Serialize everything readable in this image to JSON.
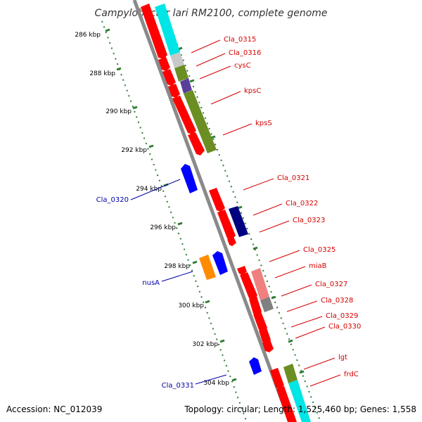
{
  "title": "Campylobacter lari RM2100, complete genome",
  "footer": {
    "accession": "Accession: NC_012039",
    "stats": "Topology: circular; Length: 1,525,460 bp; Genes: 1,558"
  },
  "colors": {
    "backbone": "#8a8a8a",
    "tick": "#2e7d32",
    "forward_label": "#d40000",
    "reverse_label": "#0000aa"
  },
  "tick_labels": [
    "286 kbp",
    "288 kbp",
    "290 kbp",
    "292 kbp",
    "294 kbp",
    "296 kbp",
    "298 kbp",
    "300 kbp",
    "302 kbp",
    "304 kbp"
  ],
  "gene_labels": [
    {
      "text": "Cla_0315",
      "strand": "forward"
    },
    {
      "text": "Cla_0316",
      "strand": "forward"
    },
    {
      "text": "cysC",
      "strand": "forward"
    },
    {
      "text": "kpsC",
      "strand": "forward"
    },
    {
      "text": "kpsS",
      "strand": "forward"
    },
    {
      "text": "Cla_0321",
      "strand": "forward"
    },
    {
      "text": "Cla_0322",
      "strand": "forward"
    },
    {
      "text": "Cla_0323",
      "strand": "forward"
    },
    {
      "text": "Cla_0325",
      "strand": "forward"
    },
    {
      "text": "miaB",
      "strand": "forward"
    },
    {
      "text": "Cla_0327",
      "strand": "forward"
    },
    {
      "text": "Cla_0328",
      "strand": "forward"
    },
    {
      "text": "Cla_0329",
      "strand": "forward"
    },
    {
      "text": "Cla_0330",
      "strand": "forward"
    },
    {
      "text": "lgt",
      "strand": "forward"
    },
    {
      "text": "frdC",
      "strand": "forward"
    },
    {
      "text": "Cla_0320",
      "strand": "reverse"
    },
    {
      "text": "nusA",
      "strand": "reverse"
    },
    {
      "text": "Cla_0331",
      "strand": "reverse"
    }
  ],
  "features": [
    {
      "kind": "forward-cds",
      "color": "#ff0000"
    },
    {
      "kind": "reverse-cds",
      "color": "#0000ff"
    },
    {
      "kind": "cog-cyan",
      "color": "#00e5e5"
    },
    {
      "kind": "cog-olive",
      "color": "#6b8e23"
    },
    {
      "kind": "cog-navy",
      "color": "#000080"
    },
    {
      "kind": "cog-orange",
      "color": "#ff8c00"
    },
    {
      "kind": "cog-pink",
      "color": "#f08080"
    },
    {
      "kind": "cog-grey",
      "color": "#808080"
    },
    {
      "kind": "cog-light-grey",
      "color": "#c8c8c8"
    },
    {
      "kind": "cog-purple",
      "color": "#5a3f9a"
    }
  ]
}
